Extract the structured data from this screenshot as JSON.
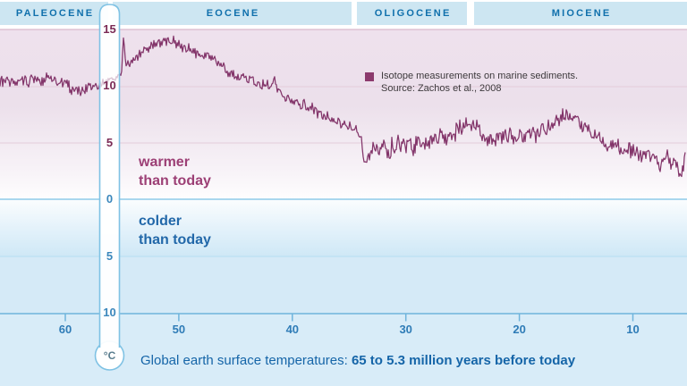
{
  "epochs": {
    "items": [
      {
        "label": "PALEOCENE"
      },
      {
        "label": "EOCENE"
      },
      {
        "label": "OLIGOCENE"
      },
      {
        "label": "MIOCENE"
      }
    ]
  },
  "thermometer": {
    "unit": "°C",
    "ticks": [
      {
        "value": 15,
        "label": "15",
        "zone": "warm"
      },
      {
        "value": 10,
        "label": "10",
        "zone": "warm"
      },
      {
        "value": 5,
        "label": "5",
        "zone": "warm"
      },
      {
        "value": 0,
        "label": "0",
        "zone": "cold"
      },
      {
        "value": -5,
        "label": "5",
        "zone": "cold"
      },
      {
        "value": -10,
        "label": "10",
        "zone": "cold"
      }
    ]
  },
  "x_axis": {
    "ticks": [
      {
        "value": 60,
        "label": "60"
      },
      {
        "value": 50,
        "label": "50"
      },
      {
        "value": 40,
        "label": "40"
      },
      {
        "value": 30,
        "label": "30"
      },
      {
        "value": 20,
        "label": "20"
      },
      {
        "value": 10,
        "label": "10"
      }
    ]
  },
  "legend": {
    "line1": "Isotope measurements on marine sediments.",
    "line2": "Source: Zachos et al., 2008",
    "marker_color": "#8c3a6d"
  },
  "zones": {
    "warmer_line1": "warmer",
    "warmer_line2": "than today",
    "colder_line1": "colder",
    "colder_line2": "than today"
  },
  "caption": {
    "prefix": "Global earth surface temperatures: ",
    "highlight": "65 to 5.3 million years before today"
  },
  "chart_data": {
    "type": "line",
    "title": "Global earth surface temperatures: 65 to 5.3 million years before today",
    "xlabel": "million years before today",
    "ylabel": "°C",
    "x_range": [
      65.8,
      5.3
    ],
    "ylim": [
      -10,
      15
    ],
    "x_ticks": [
      60,
      50,
      40,
      30,
      20,
      10
    ],
    "y_ticks": [
      15,
      10,
      5,
      0,
      -5,
      -10
    ],
    "grid": true,
    "baseline": {
      "value": 0,
      "above_label": "warmer than today",
      "below_label": "colder than today"
    },
    "epoch_bands": [
      "PALEOCENE",
      "EOCENE",
      "OLIGOCENE",
      "MIOCENE"
    ],
    "legend_position": "top-right",
    "points_format": [
      "age_million_years",
      "temperature_C",
      "noise_band_C"
    ],
    "series": [
      {
        "name": "Isotope measurements on marine sediments (Zachos et al., 2008)",
        "color": "#83356a",
        "points": [
          [
            65.8,
            10.2,
            0.55
          ],
          [
            65.2,
            10.6,
            0.5
          ],
          [
            64.6,
            10.1,
            0.5
          ],
          [
            64.0,
            10.7,
            0.5
          ],
          [
            63.4,
            10.2,
            0.5
          ],
          [
            62.8,
            10.8,
            0.5
          ],
          [
            62.2,
            10.4,
            0.5
          ],
          [
            61.6,
            10.7,
            0.45
          ],
          [
            61.0,
            10.3,
            0.45
          ],
          [
            60.4,
            10.6,
            0.45
          ],
          [
            59.8,
            10.1,
            0.45
          ],
          [
            59.2,
            9.4,
            0.45
          ],
          [
            58.6,
            9.5,
            0.45
          ],
          [
            58.0,
            9.8,
            0.45
          ],
          [
            57.2,
            10.1,
            0.4
          ],
          [
            56.5,
            10.4,
            0.4
          ],
          [
            55.8,
            10.6,
            0.4
          ],
          [
            55.3,
            10.9,
            0.35
          ],
          [
            55.05,
            11.2,
            0.35
          ],
          [
            54.87,
            14.2,
            0.25
          ],
          [
            54.65,
            11.9,
            0.4
          ],
          [
            54.2,
            12.3,
            0.45
          ],
          [
            53.6,
            12.8,
            0.45
          ],
          [
            53.0,
            13.3,
            0.5
          ],
          [
            52.3,
            13.6,
            0.5
          ],
          [
            51.6,
            13.8,
            0.5
          ],
          [
            50.9,
            14.0,
            0.5
          ],
          [
            50.2,
            13.8,
            0.5
          ],
          [
            49.5,
            13.4,
            0.48
          ],
          [
            48.8,
            13.0,
            0.45
          ],
          [
            48.1,
            12.8,
            0.45
          ],
          [
            47.4,
            12.5,
            0.45
          ],
          [
            46.7,
            12.1,
            0.45
          ],
          [
            46.0,
            11.5,
            0.45
          ],
          [
            45.3,
            11.2,
            0.45
          ],
          [
            44.6,
            10.8,
            0.45
          ],
          [
            43.9,
            10.5,
            0.48
          ],
          [
            43.2,
            10.3,
            0.5
          ],
          [
            42.5,
            10.1,
            0.5
          ],
          [
            41.9,
            9.8,
            0.5
          ],
          [
            41.6,
            10.9,
            0.45
          ],
          [
            41.2,
            9.4,
            0.5
          ],
          [
            40.6,
            9.1,
            0.5
          ],
          [
            40.0,
            8.9,
            0.5
          ],
          [
            39.3,
            8.5,
            0.5
          ],
          [
            38.6,
            8.2,
            0.5
          ],
          [
            37.9,
            7.8,
            0.5
          ],
          [
            37.2,
            7.5,
            0.5
          ],
          [
            36.5,
            7.0,
            0.5
          ],
          [
            35.8,
            6.7,
            0.5
          ],
          [
            35.1,
            6.4,
            0.5
          ],
          [
            34.5,
            6.1,
            0.5
          ],
          [
            34.0,
            5.3,
            0.5
          ],
          [
            33.7,
            3.8,
            0.6
          ],
          [
            33.4,
            3.5,
            0.7
          ],
          [
            33.0,
            4.3,
            0.7
          ],
          [
            32.3,
            4.7,
            0.75
          ],
          [
            31.6,
            4.4,
            0.75
          ],
          [
            30.9,
            4.7,
            0.75
          ],
          [
            30.2,
            4.9,
            0.75
          ],
          [
            29.5,
            4.5,
            0.75
          ],
          [
            28.8,
            4.8,
            0.75
          ],
          [
            28.1,
            5.0,
            0.75
          ],
          [
            27.4,
            5.3,
            0.75
          ],
          [
            26.7,
            5.5,
            0.72
          ],
          [
            26.0,
            5.7,
            0.72
          ],
          [
            25.3,
            6.1,
            0.7
          ],
          [
            24.6,
            6.8,
            0.7
          ],
          [
            24.0,
            6.4,
            0.7
          ],
          [
            23.4,
            5.8,
            0.7
          ],
          [
            22.8,
            5.3,
            0.7
          ],
          [
            22.1,
            4.8,
            0.7
          ],
          [
            21.5,
            5.4,
            0.7
          ],
          [
            20.8,
            5.5,
            0.7
          ],
          [
            20.1,
            5.4,
            0.7
          ],
          [
            19.4,
            5.7,
            0.7
          ],
          [
            18.7,
            5.8,
            0.7
          ],
          [
            18.0,
            6.0,
            0.7
          ],
          [
            17.3,
            6.3,
            0.68
          ],
          [
            16.6,
            6.9,
            0.65
          ],
          [
            16.0,
            7.3,
            0.65
          ],
          [
            15.4,
            7.4,
            0.65
          ],
          [
            14.8,
            6.9,
            0.62
          ],
          [
            14.2,
            6.2,
            0.6
          ],
          [
            13.6,
            5.7,
            0.6
          ],
          [
            13.0,
            5.3,
            0.6
          ],
          [
            12.4,
            4.9,
            0.62
          ],
          [
            11.8,
            4.7,
            0.65
          ],
          [
            11.2,
            4.5,
            0.65
          ],
          [
            10.6,
            4.4,
            0.65
          ],
          [
            10.0,
            4.2,
            0.65
          ],
          [
            9.4,
            3.9,
            0.68
          ],
          [
            8.8,
            3.7,
            0.68
          ],
          [
            8.2,
            3.4,
            0.7
          ],
          [
            7.6,
            3.3,
            0.7
          ],
          [
            7.0,
            3.5,
            0.7
          ],
          [
            6.5,
            3.1,
            0.7
          ],
          [
            6.1,
            2.6,
            0.65
          ],
          [
            5.8,
            2.3,
            0.6
          ],
          [
            5.55,
            2.8,
            0.5
          ],
          [
            5.35,
            4.9,
            0.3
          ]
        ]
      }
    ]
  }
}
